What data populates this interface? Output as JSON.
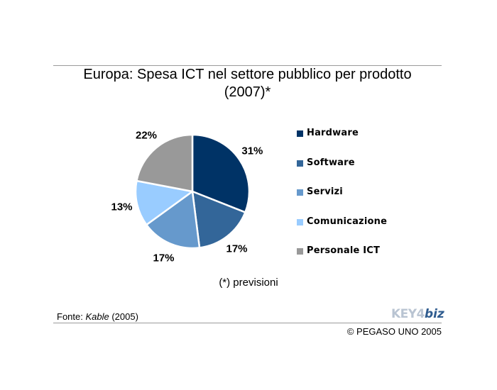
{
  "chart_data": {
    "type": "pie",
    "title": "Europa: Spesa ICT nel settore pubblico per prodotto",
    "title_line2": "(2007)*",
    "categories": [
      "Hardware",
      "Software",
      "Servizi",
      "Comunicazione",
      "Personale ICT"
    ],
    "values": [
      31,
      17,
      17,
      13,
      22
    ],
    "labels": [
      "31%",
      "17%",
      "17%",
      "13%",
      "22%"
    ],
    "colors": [
      "#003366",
      "#336699",
      "#6699cc",
      "#99ccff",
      "#999999"
    ],
    "legend_position": "right"
  },
  "note": "(*) previsioni",
  "source": {
    "prefix": "Fonte: ",
    "name": "Kable",
    "year": " (2005)"
  },
  "logo": {
    "part1": "KEY4",
    "part2": "biz"
  },
  "copyright": "© PEGASO UNO 2005"
}
